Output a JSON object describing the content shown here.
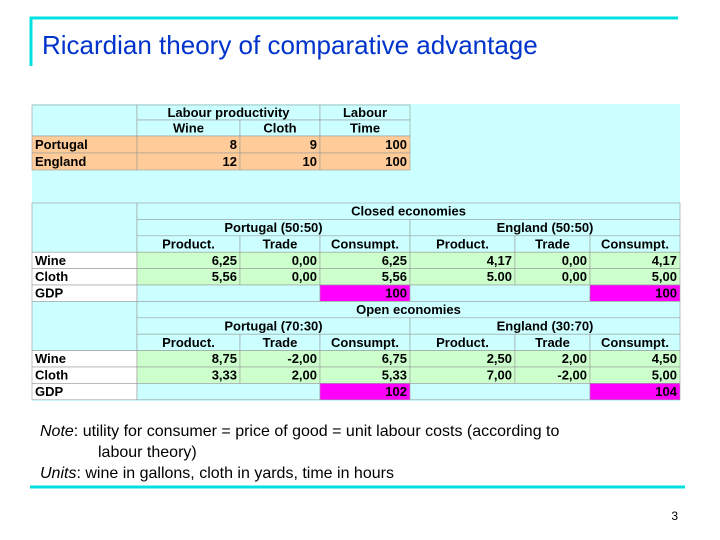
{
  "title": "Ricardian theory of comparative advantage",
  "top_table": {
    "header": {
      "productivity": "Labour productivity",
      "labour": "Labour",
      "wine": "Wine",
      "cloth": "Cloth",
      "time": "Time"
    },
    "rows": [
      [
        "Portugal",
        "8",
        "9",
        "100"
      ],
      [
        "England",
        "12",
        "10",
        "100"
      ]
    ]
  },
  "sections": [
    {
      "title": "Closed economies",
      "groups": [
        "Portugal (50:50)",
        "England (50:50)"
      ],
      "columns": [
        "Product.",
        "Trade",
        "Consumpt.",
        "Product.",
        "Trade",
        "Consumpt."
      ],
      "rows": [
        [
          "Wine",
          "6,25",
          "0,00",
          "6,25",
          "4,17",
          "0,00",
          "4,17"
        ],
        [
          "Cloth",
          "5,56",
          "0,00",
          "5,56",
          "5.00",
          "0,00",
          "5,00"
        ]
      ],
      "gdp": {
        "label": "GDP",
        "portugal": "100",
        "england": "100"
      }
    },
    {
      "title": "Open economies",
      "groups": [
        "Portugal (70:30)",
        "England (30:70)"
      ],
      "columns": [
        "Product.",
        "Trade",
        "Consumpt.",
        "Product.",
        "Trade",
        "Consumpt."
      ],
      "rows": [
        [
          "Wine",
          "8,75",
          "-2,00",
          "6,75",
          "2,50",
          "2,00",
          "4,50"
        ],
        [
          "Cloth",
          "3,33",
          "2,00",
          "5,33",
          "7,00",
          "-2,00",
          "5,00"
        ]
      ],
      "gdp": {
        "label": "GDP",
        "portugal": "102",
        "england": "104"
      }
    }
  ],
  "note": {
    "lead": "Note",
    "text": ": utility for consumer = price of good = unit labour costs (according to",
    "text2": "labour theory)"
  },
  "units": {
    "lead": "Units",
    "text": ": wine in gallons, cloth in yards, time in hours"
  },
  "page_number": "3"
}
